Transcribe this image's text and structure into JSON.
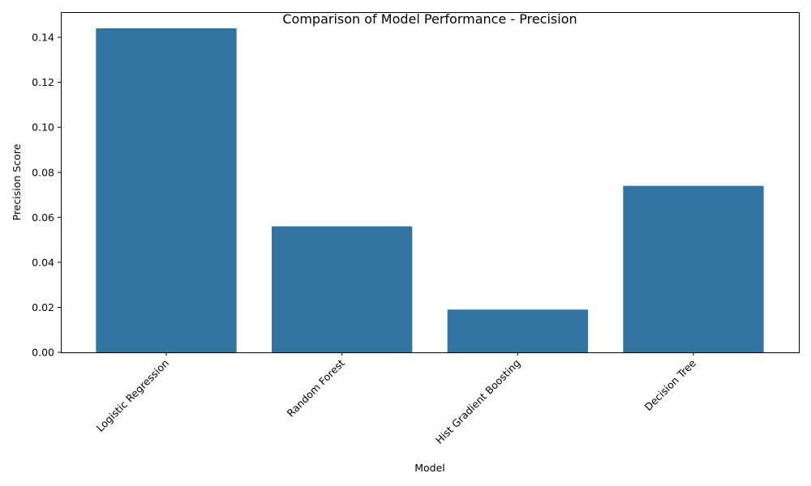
{
  "chart_data": {
    "type": "bar",
    "title": "Comparison of Model Performance - Precision",
    "xlabel": "Model",
    "ylabel": "Precision Score",
    "categories": [
      "Logistic Regression",
      "Random Forest",
      "Hist Gradient Boosting",
      "Decision Tree"
    ],
    "values": [
      0.144,
      0.056,
      0.019,
      0.074
    ],
    "ylim": [
      0,
      0.1512
    ],
    "yticks": [
      "0.00",
      "0.02",
      "0.04",
      "0.06",
      "0.08",
      "0.10",
      "0.12",
      "0.14"
    ],
    "bar_color": "#3274a1",
    "grid": false,
    "legend": "none"
  }
}
